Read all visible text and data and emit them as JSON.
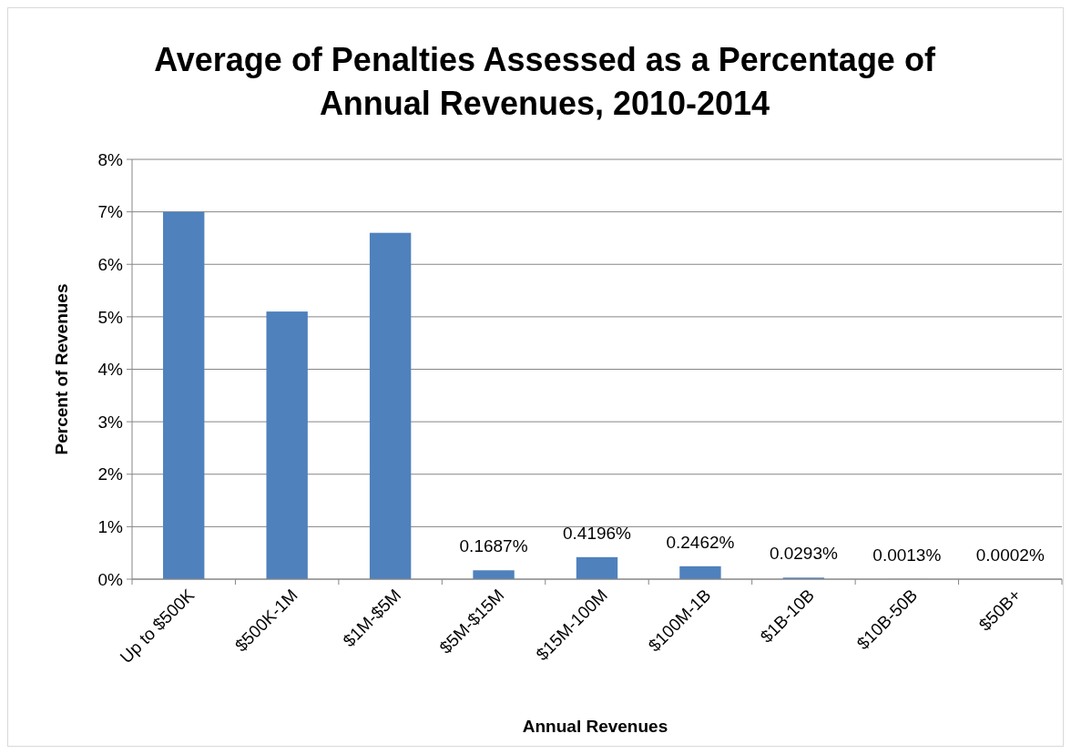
{
  "chart_data": {
    "type": "bar",
    "title": "Average of Penalties Assessed as a Percentage of Annual Revenues, 2010-2014",
    "xlabel": "Annual Revenues",
    "ylabel": "Percent of Revenues",
    "categories": [
      "Up to $500K",
      "$500K-1M",
      "$1M-$5M",
      "$5M-$15M",
      "$15M-100M",
      "$100M-1B",
      "$1B-10B",
      "$10B-50B",
      "$50B+"
    ],
    "values": [
      7.0,
      5.1,
      6.6,
      0.1687,
      0.4196,
      0.2462,
      0.0293,
      0.0013,
      0.0002
    ],
    "value_labels": [
      null,
      null,
      null,
      "0.1687%",
      "0.4196%",
      "0.2462%",
      "0.0293%",
      "0.0013%",
      "0.0002%"
    ],
    "color": "#4f81bd",
    "ylim": [
      0,
      8
    ],
    "yticks": [
      {
        "value": 0,
        "label": "0%"
      },
      {
        "value": 1,
        "label": "1%"
      },
      {
        "value": 2,
        "label": "2%"
      },
      {
        "value": 3,
        "label": "3%"
      },
      {
        "value": 4,
        "label": "4%"
      },
      {
        "value": 5,
        "label": "5%"
      },
      {
        "value": 6,
        "label": "6%"
      },
      {
        "value": 7,
        "label": "7%"
      },
      {
        "value": 8,
        "label": "8%"
      }
    ],
    "grid": "y"
  }
}
